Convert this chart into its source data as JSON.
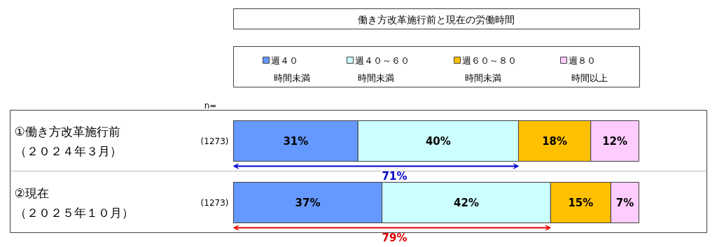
{
  "chart_data": {
    "type": "bar",
    "orientation": "horizontal",
    "stacked": true,
    "title": "働き方改革施行前と現在の労働時間",
    "categories": [
      "①働き方改革施行前（２０２４年３月）",
      "②現在（２０２５年１０月）"
    ],
    "series": [
      {
        "name": "週４０時間未満",
        "color": "#6699ff",
        "values": [
          31,
          37
        ],
        "value_labels": [
          "31%",
          "37%"
        ]
      },
      {
        "name": "週４０～６０時間未満",
        "color": "#ccffff",
        "values": [
          40,
          42
        ],
        "value_labels": [
          "40%",
          "42%"
        ]
      },
      {
        "name": "週６０～８０時間未満",
        "color": "#ffc000",
        "values": [
          18,
          15
        ],
        "value_labels": [
          "18%",
          "15%"
        ]
      },
      {
        "name": "週８０時間以上",
        "color": "#ffccff",
        "values": [
          12,
          7
        ],
        "value_labels": [
          "12%",
          "7%"
        ]
      }
    ],
    "tick_labels": "y",
    "legend": "top",
    "annotations": [
      "n=",
      "(1273)",
      "(1273)",
      "71%",
      "79%"
    ]
  }
}
